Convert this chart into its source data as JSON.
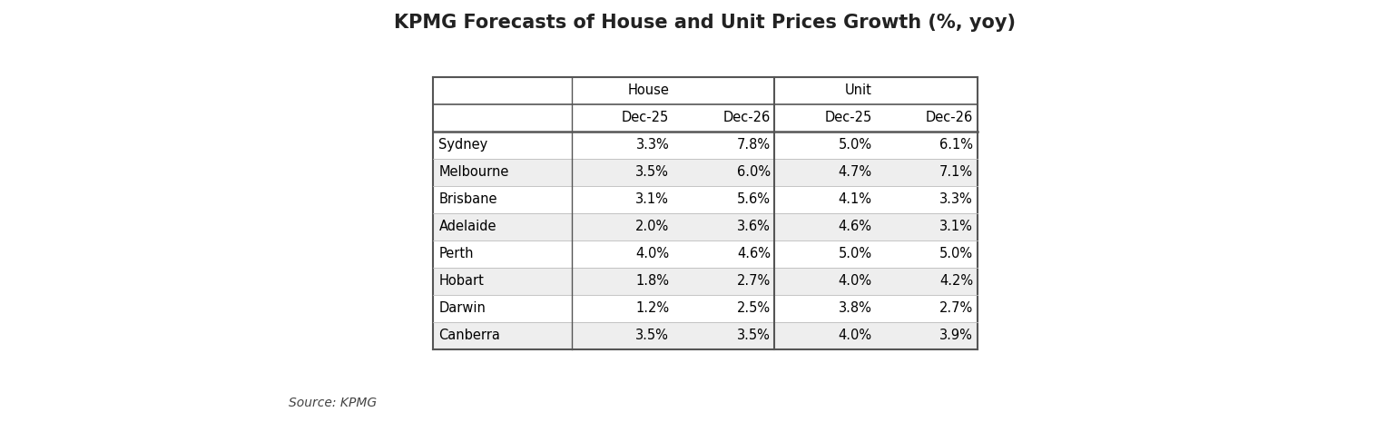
{
  "title": "KPMG Forecasts of House and Unit Prices Growth (%, yoy)",
  "source": "Source: KPMG",
  "cities": [
    "Sydney",
    "Melbourne",
    "Brisbane",
    "Adelaide",
    "Perth",
    "Hobart",
    "Darwin",
    "Canberra"
  ],
  "col_groups": [
    "House",
    "Unit"
  ],
  "col_subheaders": [
    "Dec-25",
    "Dec-26",
    "Dec-25",
    "Dec-26"
  ],
  "data": [
    [
      "3.3%",
      "7.8%",
      "5.0%",
      "6.1%"
    ],
    [
      "3.5%",
      "6.0%",
      "4.7%",
      "7.1%"
    ],
    [
      "3.1%",
      "5.6%",
      "4.1%",
      "3.3%"
    ],
    [
      "2.0%",
      "3.6%",
      "4.6%",
      "3.1%"
    ],
    [
      "4.0%",
      "4.6%",
      "5.0%",
      "5.0%"
    ],
    [
      "1.8%",
      "2.7%",
      "4.0%",
      "4.2%"
    ],
    [
      "1.2%",
      "2.5%",
      "3.8%",
      "2.7%"
    ],
    [
      "3.5%",
      "3.5%",
      "4.0%",
      "3.9%"
    ]
  ],
  "bg_color": "#ffffff",
  "border_color": "#555555",
  "font_size_title": 15,
  "font_size_table": 10.5,
  "font_size_source": 10
}
